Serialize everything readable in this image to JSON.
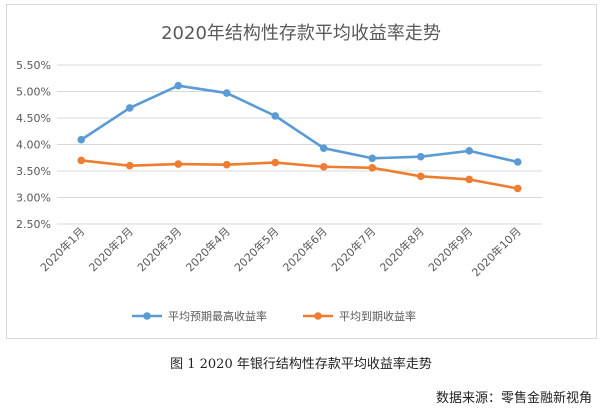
{
  "chart_data": {
    "type": "line",
    "title": "2020年结构性存款平均收益率走势",
    "categories": [
      "2020年1月",
      "2020年2月",
      "2020年3月",
      "2020年4月",
      "2020年5月",
      "2020年6月",
      "2020年7月",
      "2020年8月",
      "2020年9月",
      "2020年10月"
    ],
    "series": [
      {
        "name": "平均预期最高收益率",
        "color": "#5b9bd5",
        "values": [
          4.09,
          4.69,
          5.11,
          4.97,
          4.54,
          3.93,
          3.74,
          3.77,
          3.88,
          3.67
        ]
      },
      {
        "name": "平均到期收益率",
        "color": "#ed7d31",
        "values": [
          3.7,
          3.6,
          3.63,
          3.62,
          3.66,
          3.58,
          3.56,
          3.4,
          3.34,
          3.17
        ]
      }
    ],
    "ylim": [
      2.5,
      5.5
    ],
    "yticks": [
      "2.50%",
      "3.00%",
      "3.50%",
      "4.00%",
      "4.50%",
      "5.00%",
      "5.50%"
    ],
    "ytick_values": [
      2.5,
      3.0,
      3.5,
      4.0,
      4.5,
      5.0,
      5.5
    ],
    "grid": true,
    "legend_position": "bottom"
  },
  "caption": "图 1  2020 年银行结构性存款平均收益率走势",
  "source": "数据来源：零售金融新视角"
}
